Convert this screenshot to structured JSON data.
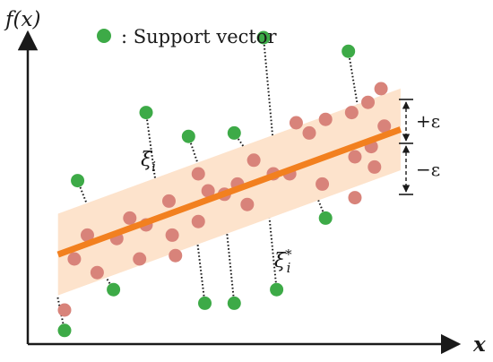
{
  "y_axis_label": "f(x)",
  "x_axis_label": "x",
  "legend": {
    "label": ": Support vector"
  },
  "annotations": {
    "xi": "ξ",
    "xi_sub": "i",
    "xi_star": "ξ",
    "xi_star_sub": "i",
    "xi_star_sup": "*",
    "plus_eps": "+ε",
    "minus_eps": "−ε"
  },
  "colors": {
    "support_vector": "#3daa47",
    "sample": "#d8837a",
    "tube": "#fde3cc",
    "regression_line": "#f2801f",
    "axis": "#1a1a1a"
  },
  "icons": {
    "support_vector_marker": "green-dot",
    "sample_marker": "salmon-dot"
  },
  "chart_data": {
    "type": "scatter",
    "description_units": "arbitrary (no axis ticks shown)",
    "regression_line": {
      "x": [
        0.0,
        1.0
      ],
      "y": [
        0.22,
        0.57
      ]
    },
    "epsilon": 0.12,
    "samples": {
      "x": [
        0.0,
        0.03,
        0.1,
        0.07,
        0.16,
        0.25,
        0.23,
        0.2,
        0.32,
        0.33,
        0.34,
        0.41,
        0.41,
        0.44,
        0.49,
        0.53,
        0.56,
        0.58,
        0.64,
        0.69,
        0.71,
        0.75,
        0.79,
        0.8,
        0.88,
        0.89,
        0.93,
        0.94,
        0.97,
        0.98,
        0.95,
        0.89
      ],
      "y": [
        0.05,
        0.2,
        0.16,
        0.27,
        0.26,
        0.3,
        0.2,
        0.32,
        0.37,
        0.27,
        0.21,
        0.31,
        0.45,
        0.4,
        0.39,
        0.42,
        0.36,
        0.49,
        0.45,
        0.45,
        0.6,
        0.57,
        0.42,
        0.61,
        0.63,
        0.5,
        0.66,
        0.53,
        0.7,
        0.59,
        0.47,
        0.38
      ]
    },
    "support_vectors": {
      "x": [
        0.0,
        0.04,
        0.25,
        0.38,
        0.43,
        0.52,
        0.61,
        0.65,
        0.8,
        0.87,
        0.15,
        0.52
      ],
      "y": [
        -0.01,
        0.43,
        0.63,
        0.56,
        0.07,
        0.57,
        0.85,
        0.11,
        0.32,
        0.81,
        0.11,
        0.07
      ]
    }
  }
}
